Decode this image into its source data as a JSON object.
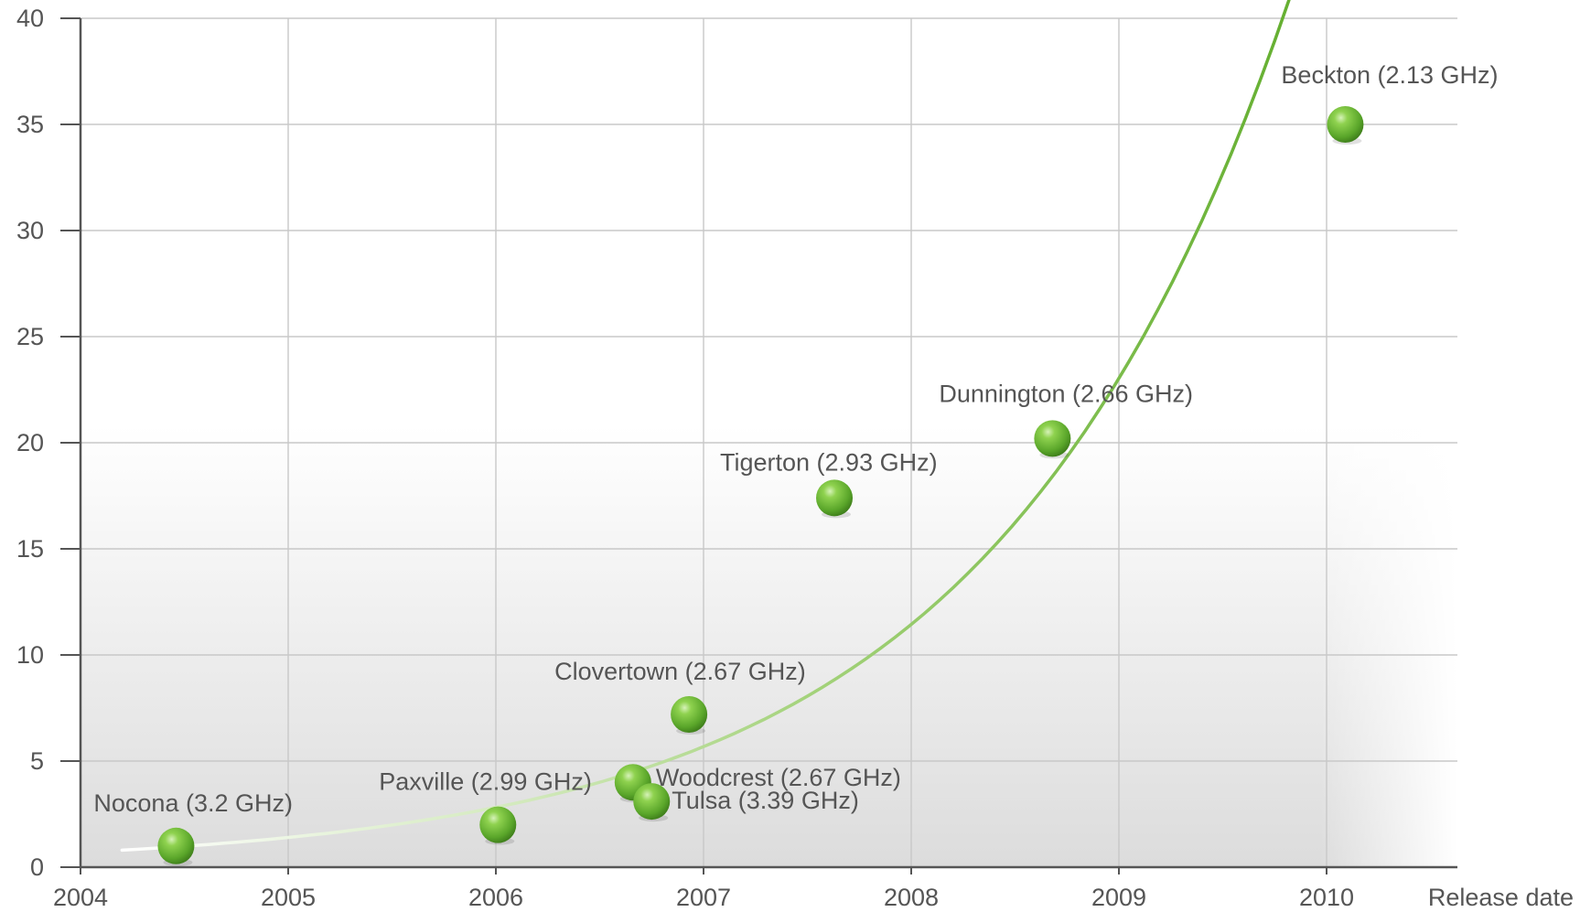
{
  "chart_data": {
    "type": "scatter",
    "xlabel": "Release date",
    "ylabel": "",
    "xlim": [
      2004,
      2010.6
    ],
    "ylim": [
      0,
      40
    ],
    "x_ticks": [
      2004,
      2005,
      2006,
      2007,
      2008,
      2009,
      2010
    ],
    "y_ticks": [
      0,
      5,
      10,
      15,
      20,
      25,
      30,
      35,
      40
    ],
    "grid": true,
    "colors": {
      "point": "#66b032",
      "trend": "#6cb33f",
      "grid": "#c8c8c8",
      "axis": "#555555",
      "text": "#555555"
    },
    "points": [
      {
        "label": "Nocona (3.2 GHz)",
        "x": 2004.46,
        "y": 1.0
      },
      {
        "label": "Paxville (2.99 GHz)",
        "x": 2006.01,
        "y": 2.0
      },
      {
        "label": "Woodcrest (2.67 GHz)",
        "x": 2006.66,
        "y": 4.0
      },
      {
        "label": "Tulsa (3.39 GHz)",
        "x": 2006.75,
        "y": 3.1
      },
      {
        "label": "Clovertown (2.67 GHz)",
        "x": 2006.93,
        "y": 7.2
      },
      {
        "label": "Tigerton (2.93 GHz)",
        "x": 2007.63,
        "y": 17.4
      },
      {
        "label": "Dunnington (2.66 GHz)",
        "x": 2008.68,
        "y": 20.2
      },
      {
        "label": "Beckton (2.13 GHz)",
        "x": 2010.09,
        "y": 35.0
      }
    ],
    "trend": {
      "type": "exponential",
      "x_start": 2004.2,
      "x_end": 2009.82,
      "y0": 0.8,
      "growth_per_year": 0.7
    }
  }
}
